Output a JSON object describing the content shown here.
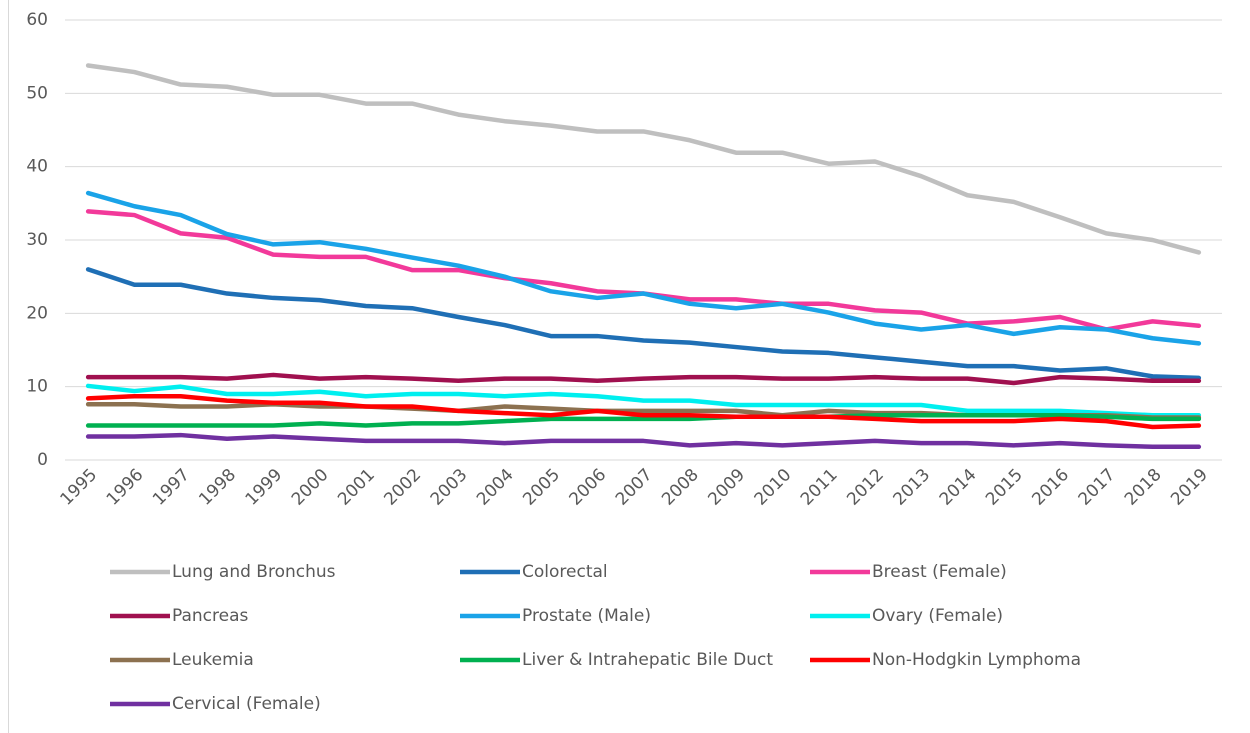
{
  "chart_data": {
    "type": "line",
    "categories": [
      "1995",
      "1996",
      "1997",
      "1998",
      "1999",
      "2000",
      "2001",
      "2002",
      "2003",
      "2004",
      "2005",
      "2006",
      "2007",
      "2008",
      "2009",
      "2010",
      "2011",
      "2012",
      "2013",
      "2014",
      "2015",
      "2016",
      "2017",
      "2018",
      "2019"
    ],
    "ylim": [
      0,
      60
    ],
    "yticks": [
      0,
      10,
      20,
      30,
      40,
      50,
      60
    ],
    "grid": true,
    "legend": "bottom",
    "series": [
      {
        "name": "Lung and Bronchus",
        "color": "#bfbfbf",
        "values": [
          53.8,
          52.9,
          51.2,
          50.9,
          49.8,
          49.8,
          48.6,
          48.6,
          47.1,
          46.2,
          45.6,
          44.8,
          44.8,
          43.6,
          41.9,
          41.9,
          40.4,
          40.7,
          38.7,
          36.1,
          35.2,
          33.1,
          30.9,
          30.0,
          28.3
        ]
      },
      {
        "name": "Colorectal",
        "color": "#1f6fb5",
        "values": [
          26.0,
          23.9,
          23.9,
          22.7,
          22.1,
          21.8,
          21.0,
          20.7,
          19.5,
          18.4,
          16.9,
          16.9,
          16.3,
          16.0,
          15.4,
          14.8,
          14.6,
          14.0,
          13.4,
          12.8,
          12.8,
          12.2,
          12.5,
          11.4,
          11.2
        ]
      },
      {
        "name": "Breast (Female)",
        "color": "#f2399a",
        "values": [
          33.9,
          33.4,
          30.9,
          30.3,
          28.0,
          27.7,
          27.7,
          25.9,
          25.9,
          24.8,
          24.1,
          23.0,
          22.7,
          21.9,
          21.9,
          21.3,
          21.3,
          20.4,
          20.1,
          18.6,
          18.9,
          19.5,
          17.8,
          18.9,
          18.3
        ]
      },
      {
        "name": "Pancreas",
        "color": "#a0104f",
        "values": [
          11.3,
          11.3,
          11.3,
          11.1,
          11.6,
          11.1,
          11.3,
          11.1,
          10.8,
          11.1,
          11.1,
          10.8,
          11.1,
          11.3,
          11.3,
          11.1,
          11.1,
          11.3,
          11.1,
          11.1,
          10.5,
          11.3,
          11.1,
          10.8,
          10.8
        ]
      },
      {
        "name": "Prostate (Male)",
        "color": "#1aa3e8",
        "values": [
          36.4,
          34.6,
          33.4,
          30.8,
          29.4,
          29.7,
          28.8,
          27.6,
          26.5,
          25.0,
          23.0,
          22.1,
          22.7,
          21.3,
          20.7,
          21.3,
          20.1,
          18.6,
          17.8,
          18.4,
          17.2,
          18.1,
          17.8,
          16.6,
          15.9
        ]
      },
      {
        "name": "Ovary (Female)",
        "color": "#00efef",
        "values": [
          10.1,
          9.4,
          10.0,
          9.0,
          9.0,
          9.3,
          8.7,
          9.0,
          9.0,
          8.7,
          9.0,
          8.7,
          8.1,
          8.1,
          7.5,
          7.5,
          7.5,
          7.5,
          7.5,
          6.7,
          6.7,
          6.7,
          6.4,
          6.1,
          6.1
        ]
      },
      {
        "name": "Leukemia",
        "color": "#8c7150",
        "values": [
          7.6,
          7.6,
          7.3,
          7.3,
          7.6,
          7.3,
          7.3,
          7.0,
          6.7,
          7.3,
          7.0,
          6.7,
          6.7,
          6.7,
          6.7,
          6.1,
          6.7,
          6.4,
          6.4,
          6.1,
          6.1,
          6.1,
          6.1,
          5.8,
          5.8
        ]
      },
      {
        "name": "Liver & Intrahepatic Bile Duct",
        "color": "#00b050",
        "values": [
          4.7,
          4.7,
          4.7,
          4.7,
          4.7,
          5.0,
          4.7,
          5.0,
          5.0,
          5.3,
          5.6,
          5.6,
          5.6,
          5.6,
          5.9,
          5.9,
          5.9,
          6.1,
          6.1,
          6.1,
          6.1,
          6.1,
          5.9,
          5.6,
          5.6
        ]
      },
      {
        "name": "Non-Hodgkin Lymphoma",
        "color": "#ff0000",
        "values": [
          8.4,
          8.7,
          8.7,
          8.1,
          7.8,
          7.8,
          7.3,
          7.3,
          6.7,
          6.4,
          6.1,
          6.7,
          6.1,
          6.1,
          5.9,
          5.9,
          5.9,
          5.6,
          5.3,
          5.3,
          5.3,
          5.6,
          5.3,
          4.5,
          4.7
        ]
      },
      {
        "name": "Cervical (Female)",
        "color": "#7030a0",
        "values": [
          3.2,
          3.2,
          3.4,
          2.9,
          3.2,
          2.9,
          2.6,
          2.6,
          2.6,
          2.3,
          2.6,
          2.6,
          2.6,
          2.0,
          2.3,
          2.0,
          2.3,
          2.6,
          2.3,
          2.3,
          2.0,
          2.3,
          2.0,
          1.8,
          1.8
        ]
      }
    ]
  }
}
